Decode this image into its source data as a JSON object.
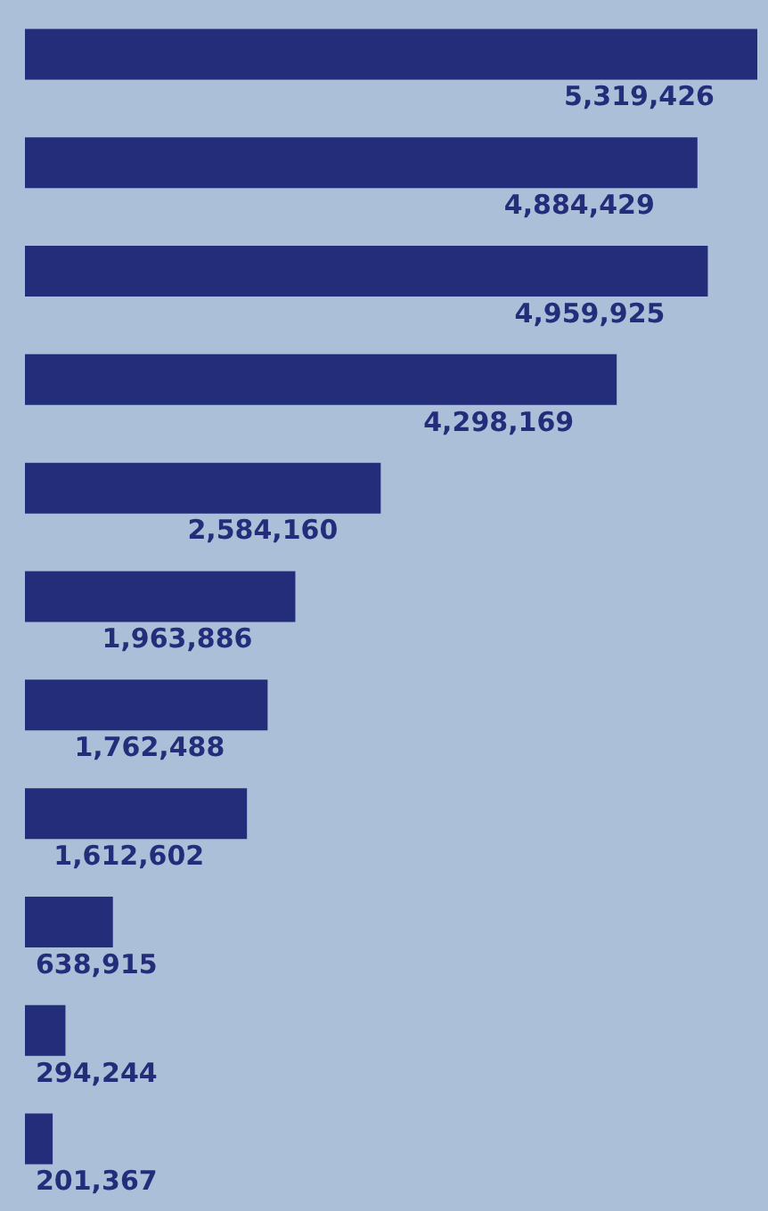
{
  "chart_data": {
    "type": "bar",
    "orientation": "horizontal",
    "categories": [
      null,
      null,
      null,
      null,
      null,
      null,
      null,
      null,
      null,
      null,
      null
    ],
    "values": [
      5319426,
      4884429,
      4959925,
      4298169,
      2584160,
      1963886,
      1762488,
      1612602,
      638915,
      294244,
      201367
    ],
    "value_labels": [
      "5,319,426",
      "4,884,429",
      "4,959,925",
      "4,298,169",
      "2,584,160",
      "1,963,886",
      "1,762,488",
      "1,612,602",
      "638,915",
      "294,244",
      "201,367"
    ],
    "color": "#232d7a",
    "tick_labels": false
  }
}
